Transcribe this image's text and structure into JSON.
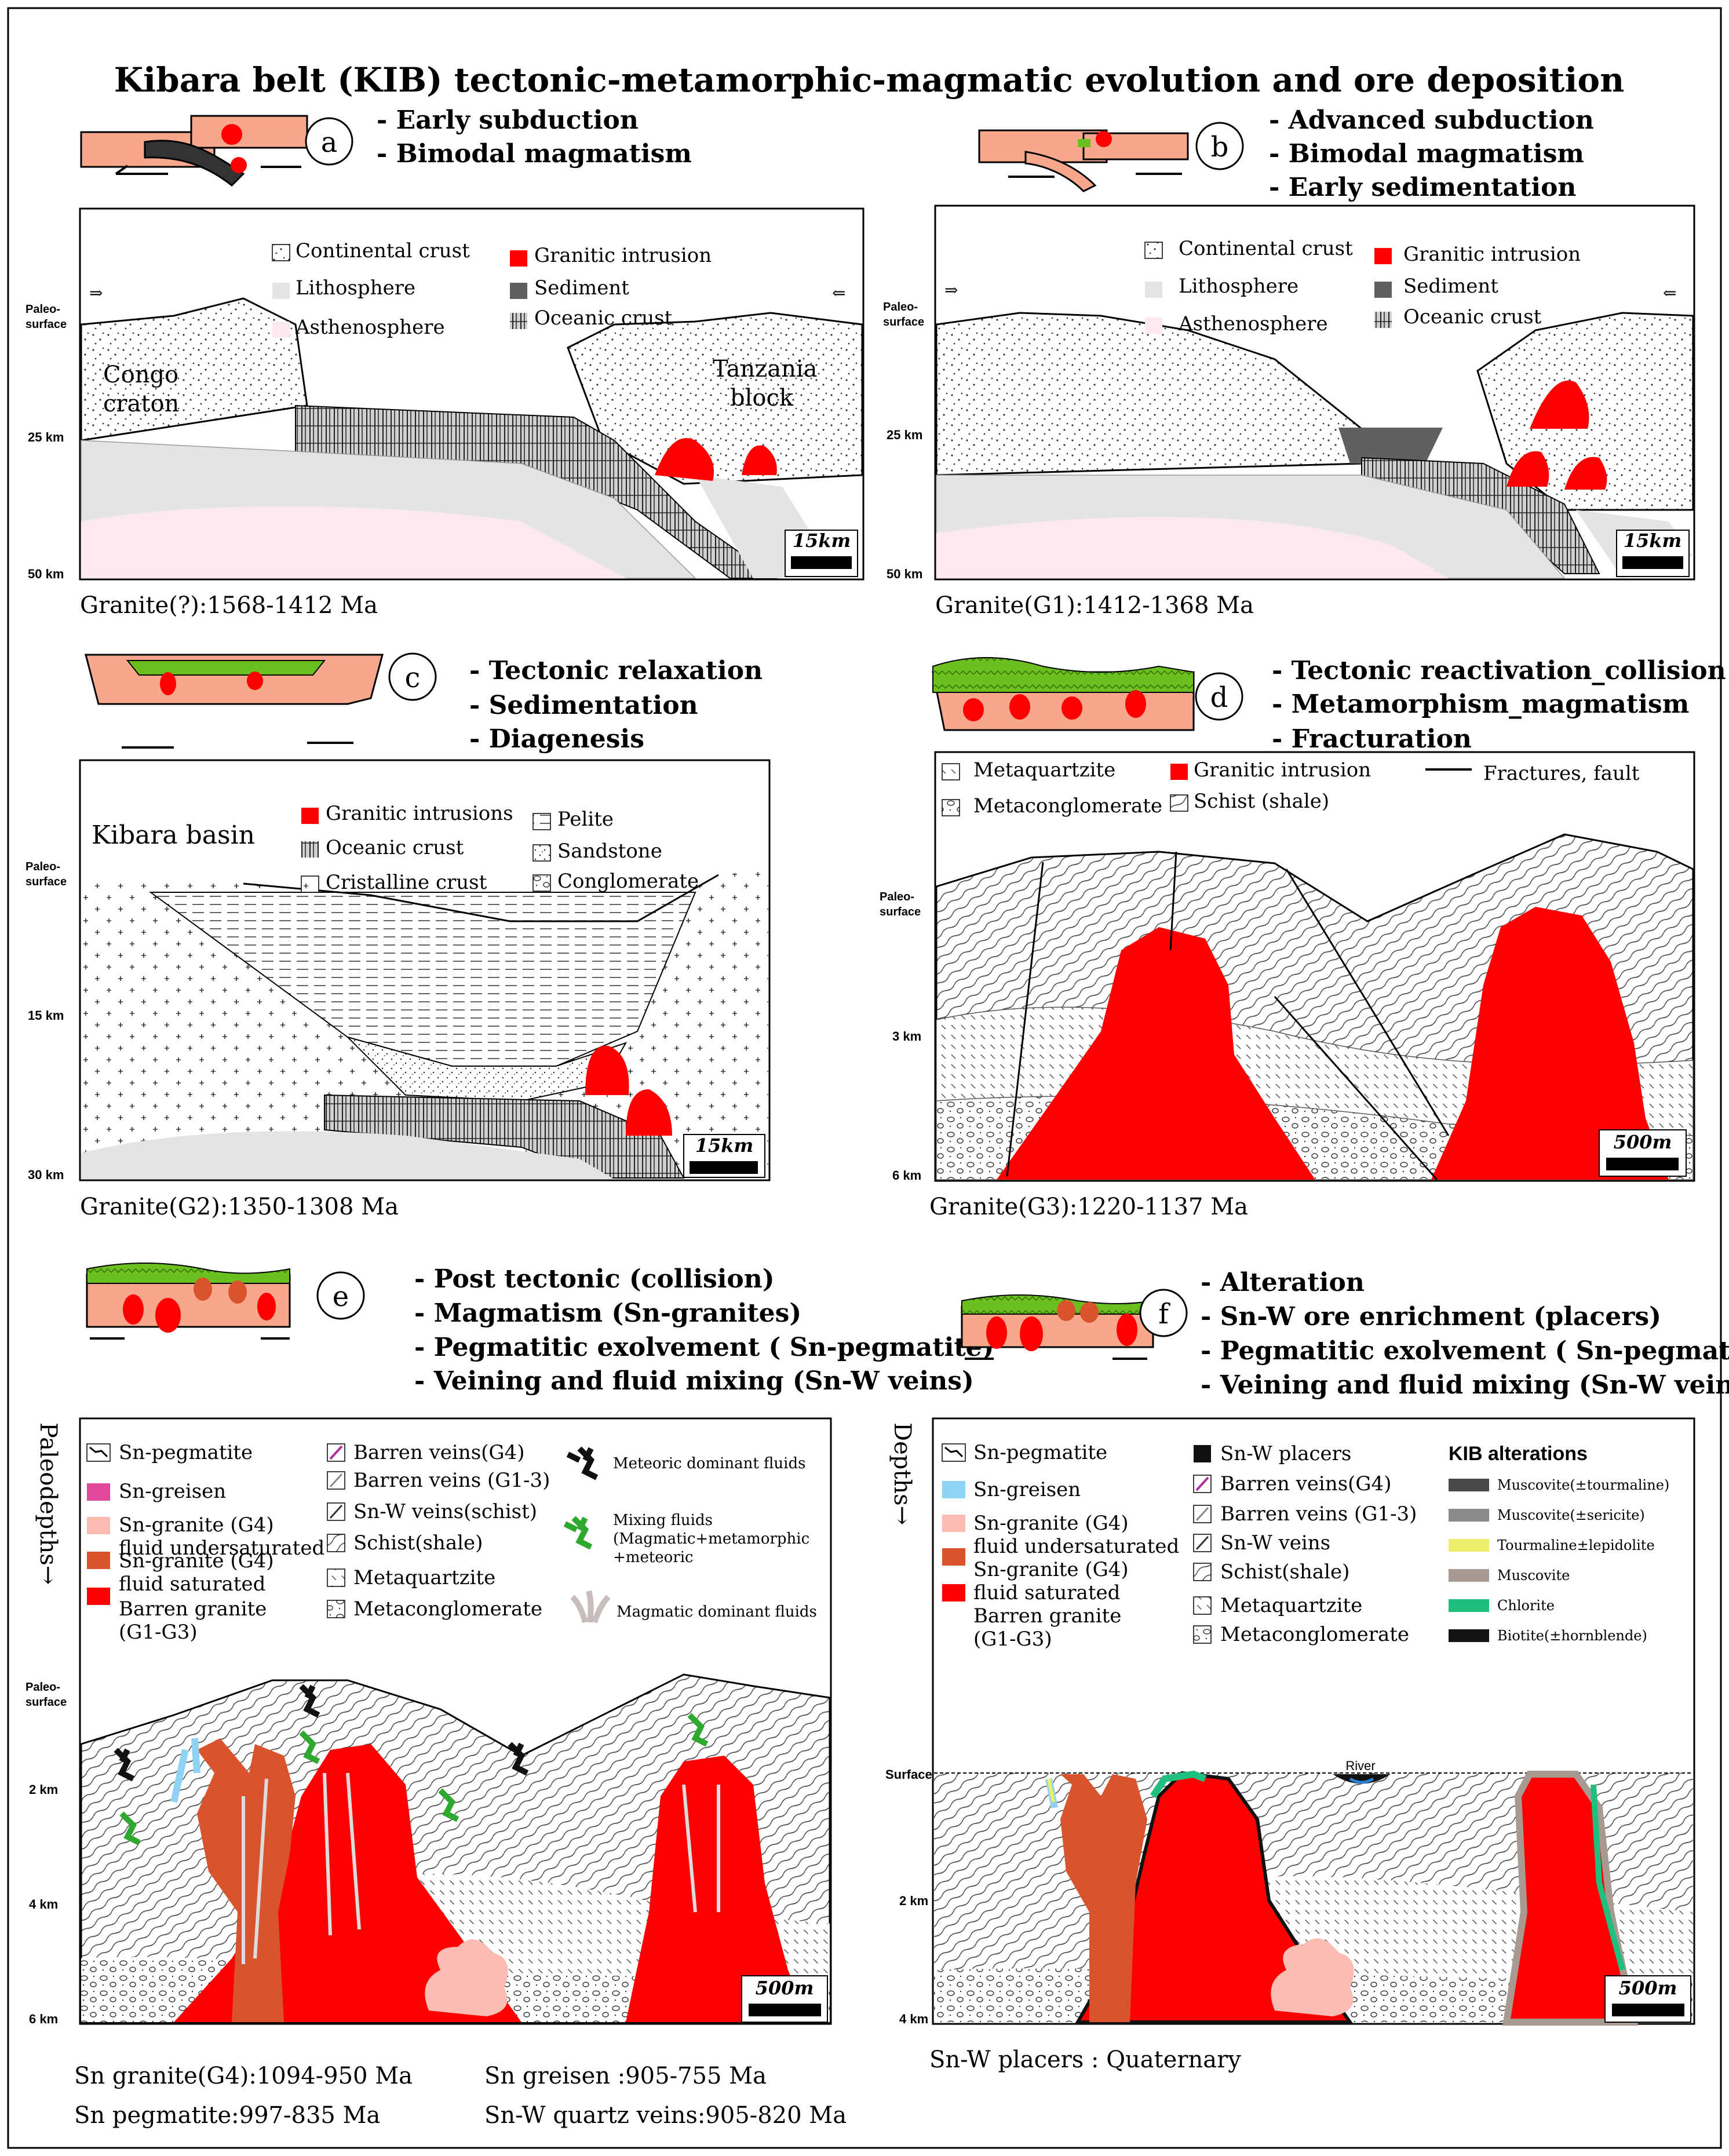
{
  "title": "Kibara belt (KIB) tectonic-metamorphic-magmatic evolution and ore deposition",
  "colors": {
    "continental": "#fde6d8",
    "lithosphere": "#e4e4e4",
    "asthenosphere": "#fbe9ef",
    "granite": "#ff0000",
    "sediment": "#606060",
    "green": "#6bbf1f",
    "granite_sat": "#d9532c",
    "granite_under": "#fbbcb4",
    "greisen_blue": "#8fd3f4",
    "greisen_pink": "#e0489a"
  },
  "panels": {
    "a": {
      "letter": "a",
      "notes": [
        "- Early subduction",
        "- Bimodal magmatism"
      ],
      "legend": [
        "Continental crust",
        "Lithosphere",
        "Asthenosphere",
        "Granitic intrusion",
        "Sediment",
        "Oceanic crust"
      ],
      "labels": {
        "left_block": [
          "Congo",
          "craton"
        ],
        "right_block": [
          "Tanzania",
          "block"
        ]
      },
      "axis": {
        "top": [
          "Paleo-",
          "surface"
        ],
        "mid": "25 km",
        "bottom": "50 km"
      },
      "scale": "15km",
      "age": "Granite(?):1568-1412 Ma"
    },
    "b": {
      "letter": "b",
      "notes": [
        "- Advanced  subduction",
        "- Bimodal magmatism",
        "- Early sedimentation"
      ],
      "legend": [
        "Continental crust",
        "Lithosphere",
        "Asthenosphere",
        "Granitic intrusion",
        "Sediment",
        "Oceanic crust"
      ],
      "axis": {
        "top": [
          "Paleo-",
          "surface"
        ],
        "mid": "25 km",
        "bottom": "50 km"
      },
      "scale": "15km",
      "age": "Granite(G1):1412-1368 Ma"
    },
    "c": {
      "letter": "c",
      "notes": [
        "- Tectonic relaxation",
        "- Sedimentation",
        "- Diagenesis"
      ],
      "basin": "Kibara basin",
      "legend": [
        "Granitic intrusions",
        "Oceanic crust",
        "Cristalline crust",
        "Pelite",
        "Sandstone",
        "Conglomerate"
      ],
      "axis": {
        "top": [
          "Paleo-",
          "surface"
        ],
        "mid": "15 km",
        "bottom": "30 km"
      },
      "scale": "15km",
      "age": "Granite(G2):1350-1308 Ma"
    },
    "d": {
      "letter": "d",
      "notes": [
        "- Tectonic reactivation_collision",
        "- Metamorphism_magmatism",
        "- Fracturation"
      ],
      "legend": [
        "Metaquartzite",
        "Metaconglomerate",
        "Granitic intrusion",
        "Schist (shale)",
        "Fractures, fault"
      ],
      "axis": {
        "top": [
          "Paleo-",
          "surface"
        ],
        "mid": "3 km",
        "bottom": "6 km"
      },
      "scale": "500m",
      "age": "Granite(G3):1220-1137 Ma"
    },
    "e": {
      "letter": "e",
      "notes": [
        "- Post tectonic (collision)",
        "- Magmatism (Sn-granites)",
        "- Pegmatitic exolvement ( Sn-pegmatite)",
        "- Veining and fluid mixing (Sn-W veins)"
      ],
      "side_label": "Paleodepths→",
      "legend_col1": [
        "Sn-pegmatite",
        "Sn-greisen",
        "Sn-granite (G4)",
        "fluid undersaturated",
        "Sn-granite (G4)",
        "fluid saturated",
        "Barren granite",
        "(G1-G3)"
      ],
      "legend_col2": [
        "Barren veins(G4)",
        "Barren veins (G1-3)",
        "Sn-W veins(schist)",
        "Schist(shale)",
        "Metaquartzite",
        "Metaconglomerate"
      ],
      "legend_col3": [
        "Meteoric dominant fluids",
        "Mixing fluids",
        "(Magmatic+metamorphic",
        "+meteoric",
        "Magmatic dominant fluids"
      ],
      "axis": {
        "top": [
          "Paleo-",
          "surface"
        ],
        "a": "2 km",
        "b": "4 km",
        "c": "6 km"
      },
      "scale": "500m",
      "ages": [
        "Sn granite(G4):1094-950 Ma",
        "Sn pegmatite:997-835 Ma",
        "Sn greisen :905-755 Ma",
        "Sn-W quartz veins:905-820 Ma"
      ]
    },
    "f": {
      "letter": "f",
      "notes": [
        "- Alteration",
        "- Sn-W ore enrichment (placers)",
        "- Pegmatitic exolvement ( Sn-pegmatite)",
        "- Veining and fluid mixing (Sn-W veins)"
      ],
      "side_label": "Depths→",
      "legend_col1": [
        "Sn-pegmatite",
        "Sn-greisen",
        "Sn-granite (G4)",
        "fluid undersaturated",
        "Sn-granite (G4)",
        "fluid saturated",
        "Barren granite",
        "(G1-G3)"
      ],
      "legend_col2": [
        "Sn-W placers",
        "Barren veins(G4)",
        "Barren veins (G1-3)",
        "Sn-W veins",
        "Schist(shale)",
        "Metaquartzite",
        "Metaconglomerate"
      ],
      "alteration_title": "KIB alterations",
      "alterations": [
        {
          "label": "Muscovite(±tourmaline)",
          "color": "#4a4a4a"
        },
        {
          "label": "Muscovite(±sericite)",
          "color": "#8a8a8a"
        },
        {
          "label": "Tourmaline±lepidolite",
          "color": "#ecee6a"
        },
        {
          "label": "Muscovite",
          "color": "#a89a90"
        },
        {
          "label": "Chlorite",
          "color": "#1fbf7f"
        },
        {
          "label": "Biotite(±hornblende)",
          "color": "#141414"
        }
      ],
      "river": "River",
      "axis": {
        "top": "Surface",
        "a": "2 km",
        "b": "4 km"
      },
      "scale": "500m",
      "age": "Sn-W placers : Quaternary"
    }
  }
}
